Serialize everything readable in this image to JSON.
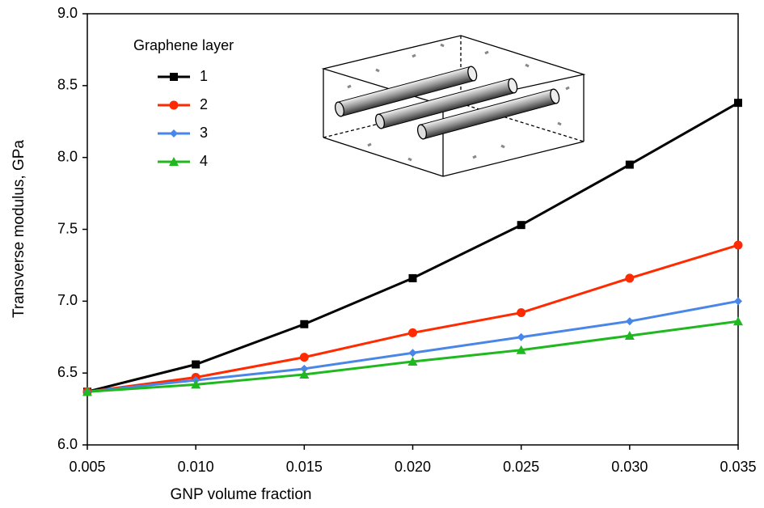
{
  "chart_data": {
    "type": "line",
    "x_label": "GNP volume fraction",
    "y_label": "Transverse modulus, GPa",
    "x": [
      0.005,
      0.01,
      0.015,
      0.02,
      0.025,
      0.03,
      0.035
    ],
    "xlim": [
      0.005,
      0.035
    ],
    "xticks": [
      0.005,
      {
        "value": 0.01,
        "label": "0.010"
      },
      0.015,
      {
        "value": 0.02,
        "label": "0.020"
      },
      0.025,
      {
        "value": 0.03,
        "label": "0.030"
      },
      0.035
    ],
    "ylim": [
      6,
      9
    ],
    "yticks": [
      {
        "value": 6,
        "label": "6.0"
      },
      6.5,
      {
        "value": 7,
        "label": "7.0"
      },
      7.5,
      {
        "value": 8,
        "label": "8.0"
      },
      8.5,
      {
        "value": 9,
        "label": "9.0"
      }
    ],
    "legend_title": "Graphene layer",
    "legend": "upper left",
    "series": [
      {
        "name": "1",
        "color": "#000000",
        "marker": "square",
        "values": [
          6.37,
          6.56,
          6.84,
          7.16,
          7.53,
          7.95,
          8.38
        ]
      },
      {
        "name": "2",
        "color": "#ff2a00",
        "marker": "circle",
        "values": [
          6.37,
          6.47,
          6.61,
          6.78,
          6.92,
          7.16,
          7.39
        ]
      },
      {
        "name": "3",
        "color": "#4a86e8",
        "marker": "diamond",
        "values": [
          6.37,
          6.45,
          6.53,
          6.64,
          6.75,
          6.86,
          7.0
        ]
      },
      {
        "name": "4",
        "color": "#1fb81f",
        "marker": "triangle",
        "values": [
          6.37,
          6.42,
          6.49,
          6.58,
          6.66,
          6.76,
          6.86
        ]
      }
    ]
  }
}
